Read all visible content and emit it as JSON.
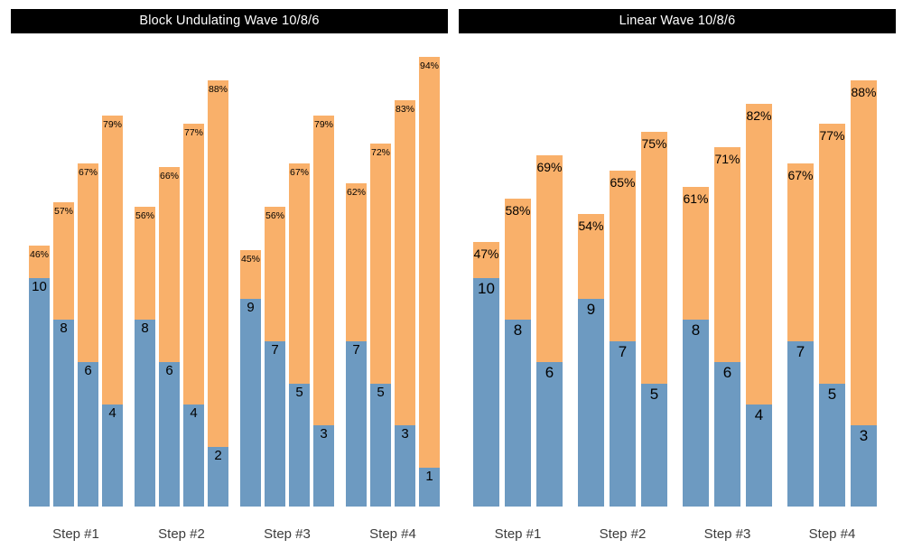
{
  "colors": {
    "reps_bar": "#6d9ac1",
    "intensity_bar": "#f9b06a",
    "title_bg": "#000000",
    "title_text": "#ffffff",
    "bar_label": "#000000",
    "axis_label": "#3c3c3c",
    "background": "#ffffff"
  },
  "chart_data": [
    {
      "type": "bar",
      "variant": "grouped-overlay-stacked",
      "title": "Block Undulating Wave 10/8/6",
      "categories": [
        "Step #1",
        "Step #2",
        "Step #3",
        "Step #4"
      ],
      "legend": [
        "reps (blue, inner bar)",
        "percent of max (orange, full bar)"
      ],
      "pct_label_suffix": "%",
      "grid": false,
      "groups": [
        {
          "category": "Step #1",
          "bars": [
            {
              "reps": 10,
              "pct": 46
            },
            {
              "reps": 8,
              "pct": 57
            },
            {
              "reps": 6,
              "pct": 67
            },
            {
              "reps": 4,
              "pct": 79
            }
          ]
        },
        {
          "category": "Step #2",
          "bars": [
            {
              "reps": 8,
              "pct": 56
            },
            {
              "reps": 6,
              "pct": 66
            },
            {
              "reps": 4,
              "pct": 77
            },
            {
              "reps": 2,
              "pct": 88
            }
          ]
        },
        {
          "category": "Step #3",
          "bars": [
            {
              "reps": 9,
              "pct": 45
            },
            {
              "reps": 7,
              "pct": 56
            },
            {
              "reps": 5,
              "pct": 67
            },
            {
              "reps": 3,
              "pct": 79
            }
          ]
        },
        {
          "category": "Step #4",
          "bars": [
            {
              "reps": 7,
              "pct": 62
            },
            {
              "reps": 5,
              "pct": 72
            },
            {
              "reps": 3,
              "pct": 83
            },
            {
              "reps": 1,
              "pct": 94
            }
          ]
        }
      ]
    },
    {
      "type": "bar",
      "variant": "grouped-overlay-stacked",
      "title": "Linear Wave 10/8/6",
      "categories": [
        "Step #1",
        "Step #2",
        "Step #3",
        "Step #4"
      ],
      "legend": [
        "reps (blue, inner bar)",
        "percent of max (orange, full bar)"
      ],
      "pct_label_suffix": "%",
      "grid": false,
      "groups": [
        {
          "category": "Step #1",
          "bars": [
            {
              "reps": 10,
              "pct": 47
            },
            {
              "reps": 8,
              "pct": 58
            },
            {
              "reps": 6,
              "pct": 69
            }
          ]
        },
        {
          "category": "Step #2",
          "bars": [
            {
              "reps": 9,
              "pct": 54
            },
            {
              "reps": 7,
              "pct": 65
            },
            {
              "reps": 5,
              "pct": 75
            }
          ]
        },
        {
          "category": "Step #3",
          "bars": [
            {
              "reps": 8,
              "pct": 61
            },
            {
              "reps": 6,
              "pct": 71
            },
            {
              "reps": 4,
              "pct": 82
            }
          ]
        },
        {
          "category": "Step #4",
          "bars": [
            {
              "reps": 7,
              "pct": 67
            },
            {
              "reps": 5,
              "pct": 77
            },
            {
              "reps": 3,
              "pct": 88
            }
          ]
        }
      ]
    }
  ]
}
